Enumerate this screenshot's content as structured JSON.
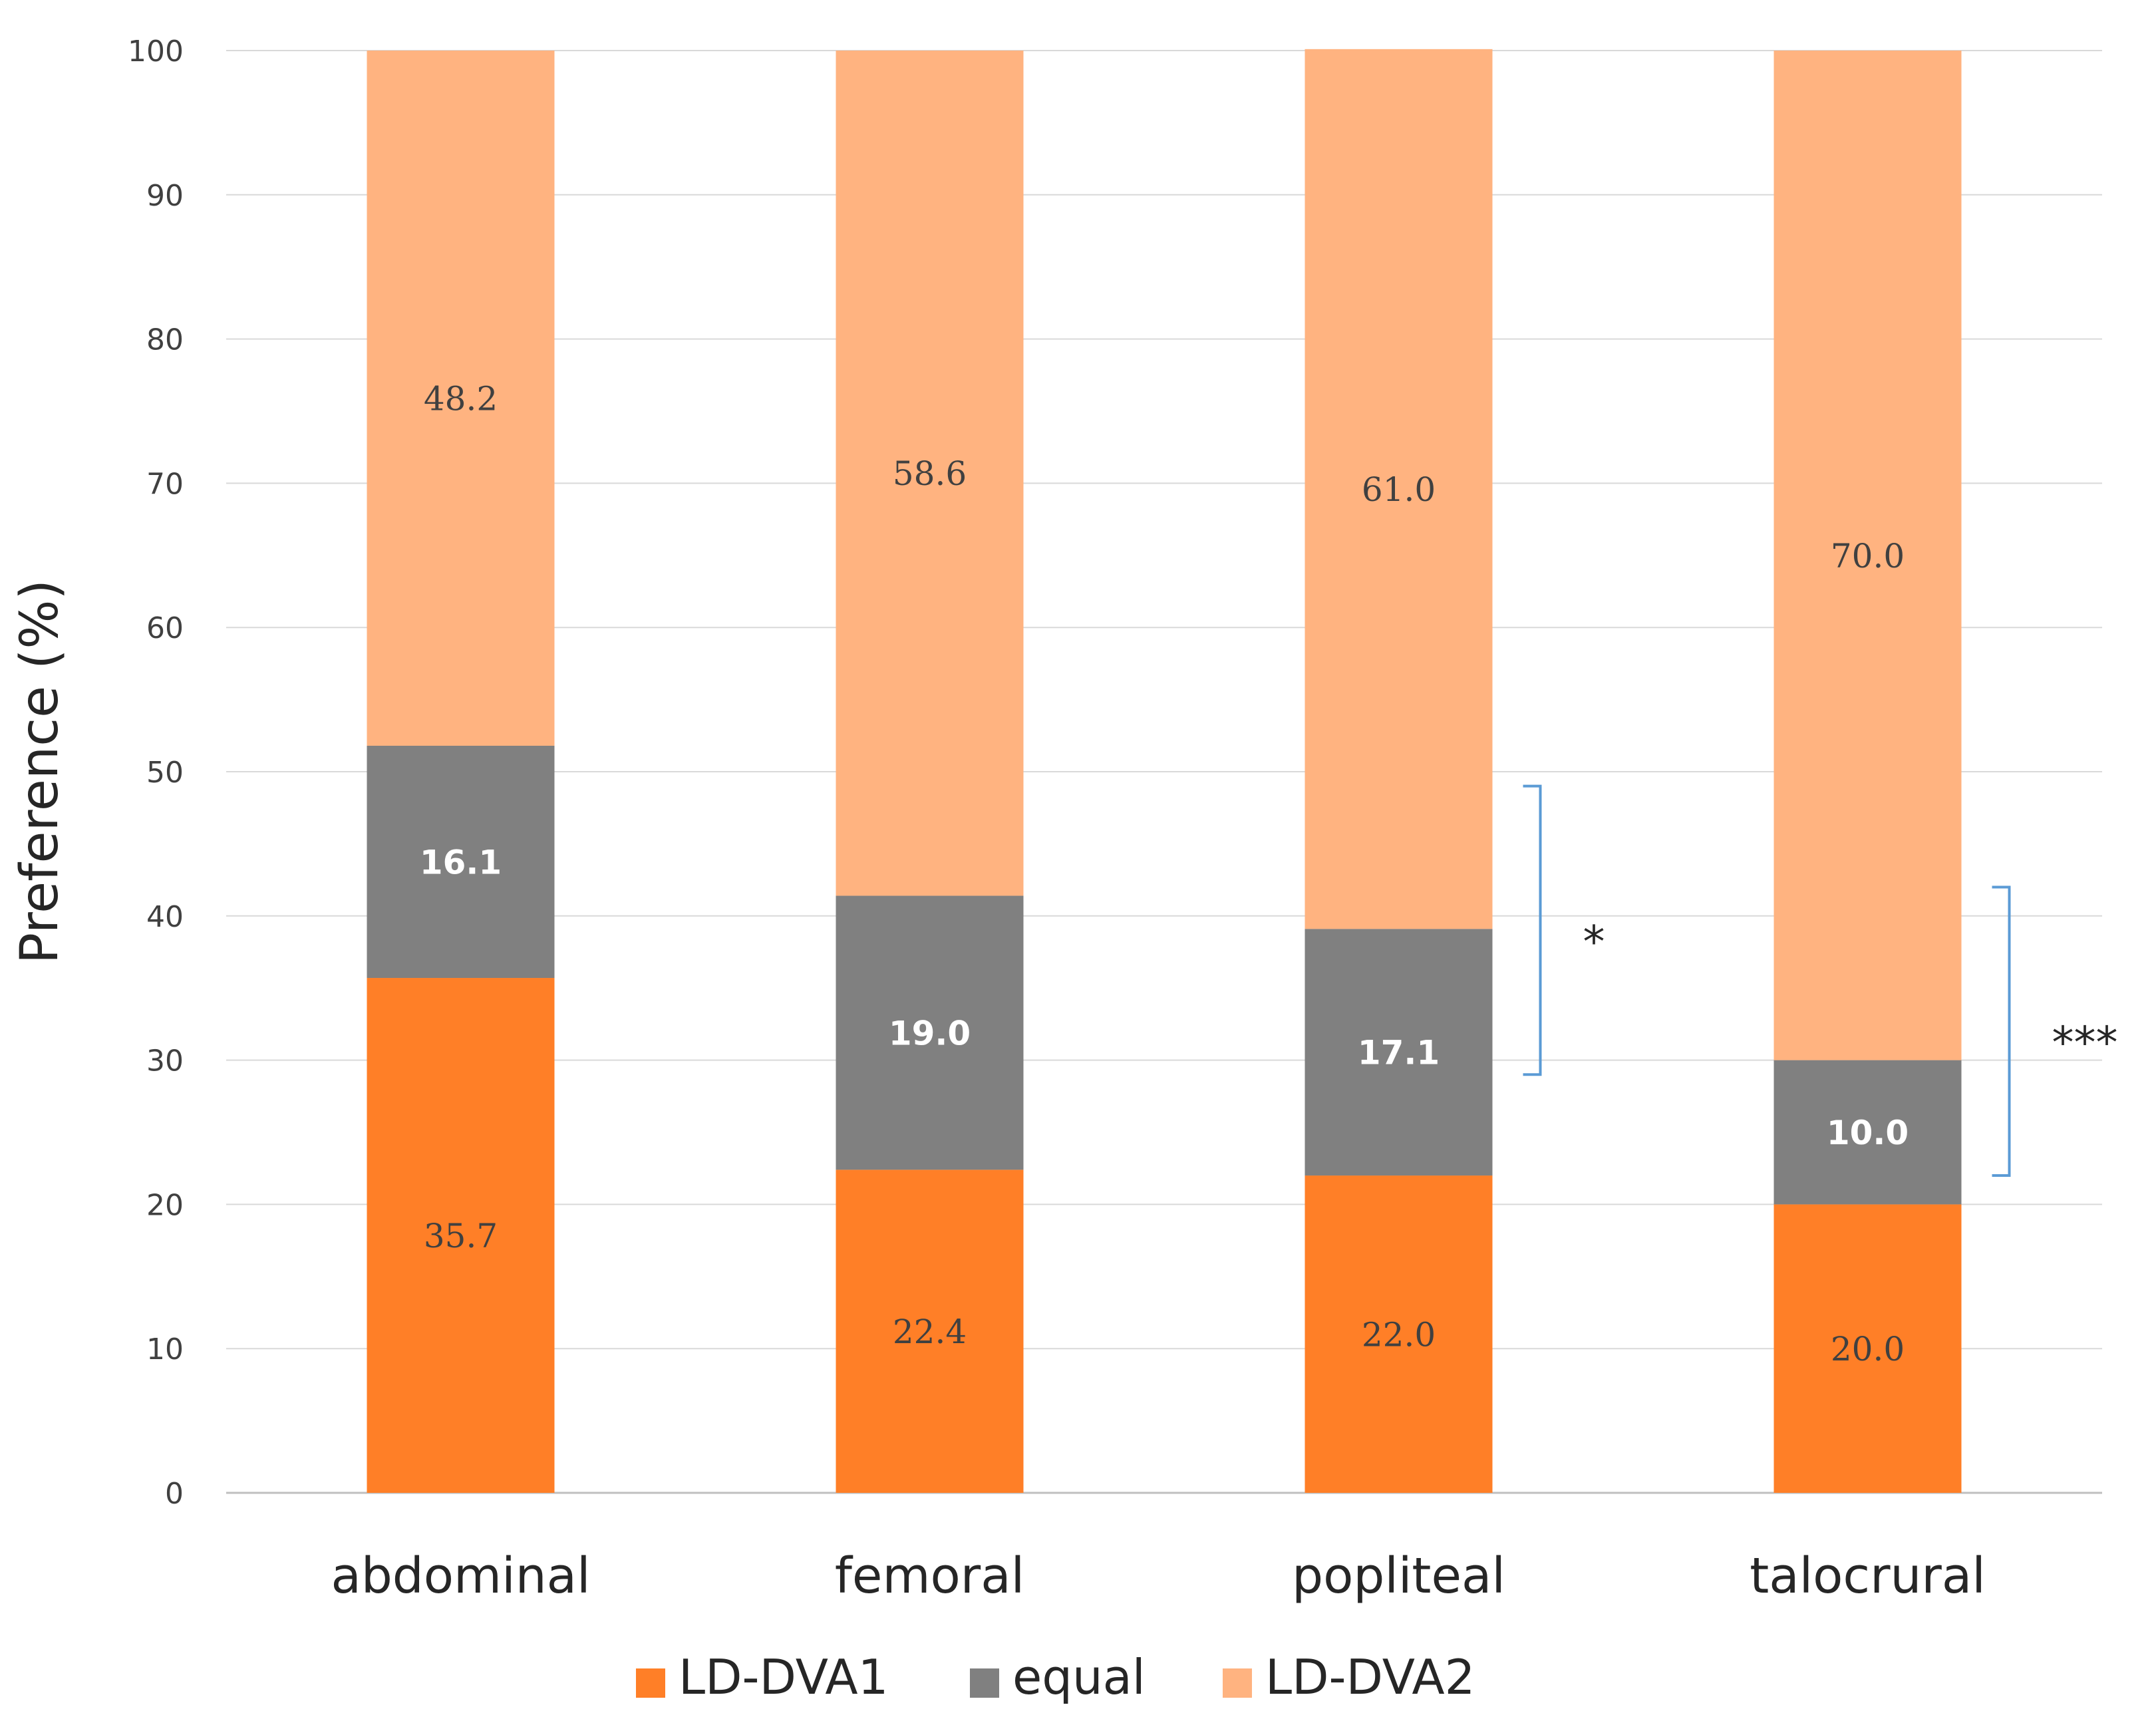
{
  "chart_data": {
    "type": "bar",
    "stacked": true,
    "title": "",
    "xlabel": "",
    "ylabel": "Preference (%)",
    "ylim": [
      0,
      100
    ],
    "yticks": [
      0,
      10,
      20,
      30,
      40,
      50,
      60,
      70,
      80,
      90,
      100
    ],
    "grid": true,
    "categories": [
      "abdominal",
      "femoral",
      "popliteal",
      "talocrural"
    ],
    "series": [
      {
        "name": "LD-DVA1",
        "color": "#FF7F27",
        "label_color": "#404040",
        "label_weight": "normal",
        "values": [
          35.7,
          22.4,
          22.0,
          20.0
        ],
        "labels": [
          "35.7",
          "22.4",
          "22.0",
          "20.0"
        ]
      },
      {
        "name": "equal",
        "color": "#808080",
        "label_color": "#FFFFFF",
        "label_weight": "bold",
        "values": [
          16.1,
          19.0,
          17.1,
          10.0
        ],
        "labels": [
          "16.1",
          "19.0",
          "17.1",
          "10.0"
        ]
      },
      {
        "name": "LD-DVA2",
        "color": "#FFB380",
        "label_color": "#404040",
        "label_weight": "normal",
        "values": [
          48.2,
          58.6,
          61.0,
          70.0
        ],
        "labels": [
          "48.2",
          "58.6",
          "61.0",
          "70.0"
        ]
      }
    ],
    "legend": {
      "position": "bottom"
    },
    "annotations": [
      {
        "category": "popliteal",
        "from": 29,
        "to": 49,
        "text": "*",
        "color": "#5B9BD5"
      },
      {
        "category": "talocrural",
        "from": 22,
        "to": 42,
        "text": "***",
        "color": "#5B9BD5"
      }
    ]
  }
}
